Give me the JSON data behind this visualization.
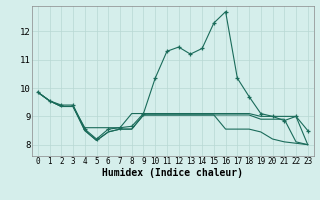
{
  "xlabel": "Humidex (Indice chaleur)",
  "x_ticks": [
    0,
    1,
    2,
    3,
    4,
    5,
    6,
    7,
    8,
    9,
    10,
    11,
    12,
    13,
    14,
    15,
    16,
    17,
    18,
    19,
    20,
    21,
    22,
    23
  ],
  "ylim": [
    7.6,
    12.9
  ],
  "xlim": [
    -0.5,
    23.5
  ],
  "background_color": "#d5eeeb",
  "grid_color": "#b8d8d4",
  "line_color": "#1a6b5a",
  "yticks": [
    8,
    9,
    10,
    11,
    12
  ],
  "line1_x": [
    0,
    1,
    2,
    3,
    4,
    5,
    6,
    7,
    8,
    9,
    10,
    11,
    12,
    13,
    14,
    15,
    16,
    17,
    18,
    19,
    20,
    21,
    22,
    23
  ],
  "line1_y": [
    9.85,
    9.55,
    9.4,
    9.4,
    8.55,
    8.2,
    8.55,
    8.6,
    8.65,
    9.1,
    10.35,
    11.3,
    11.45,
    11.2,
    11.4,
    12.3,
    12.7,
    10.35,
    9.7,
    9.1,
    9.0,
    8.85,
    9.0,
    8.5
  ],
  "line2_x": [
    0,
    1,
    2,
    3,
    4,
    5,
    6,
    7,
    8,
    9,
    10,
    11,
    12,
    13,
    14,
    15,
    16,
    17,
    18,
    19,
    20,
    21,
    22,
    23
  ],
  "line2_y": [
    9.85,
    9.55,
    9.35,
    9.35,
    8.6,
    8.6,
    8.6,
    8.6,
    9.1,
    9.1,
    9.1,
    9.1,
    9.1,
    9.1,
    9.1,
    9.1,
    9.1,
    9.1,
    9.1,
    9.0,
    9.0,
    9.0,
    9.0,
    8.0
  ],
  "line3_x": [
    0,
    1,
    2,
    3,
    4,
    5,
    6,
    7,
    8,
    9,
    10,
    11,
    12,
    13,
    14,
    15,
    16,
    17,
    18,
    19,
    20,
    21,
    22,
    23
  ],
  "line3_y": [
    9.85,
    9.55,
    9.35,
    9.35,
    8.5,
    8.15,
    8.45,
    8.55,
    8.55,
    9.05,
    9.05,
    9.05,
    9.05,
    9.05,
    9.05,
    9.05,
    9.05,
    9.05,
    9.05,
    8.9,
    8.9,
    8.9,
    8.1,
    8.0
  ],
  "line4_x": [
    0,
    1,
    2,
    3,
    4,
    5,
    6,
    7,
    8,
    9,
    10,
    11,
    12,
    13,
    14,
    15,
    16,
    17,
    18,
    19,
    20,
    21,
    22,
    23
  ],
  "line4_y": [
    9.85,
    9.55,
    9.35,
    9.35,
    8.5,
    8.15,
    8.45,
    8.55,
    8.55,
    9.05,
    9.05,
    9.05,
    9.05,
    9.05,
    9.05,
    9.05,
    8.55,
    8.55,
    8.55,
    8.45,
    8.2,
    8.1,
    8.05,
    8.0
  ]
}
